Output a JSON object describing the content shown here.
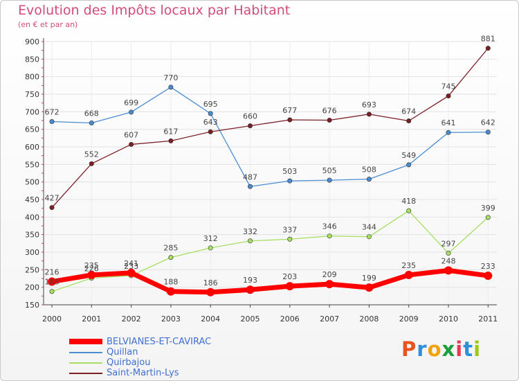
{
  "title": "Evolution des Impôts locaux par Habitant",
  "subtitle": "(en € et par an)",
  "brand": {
    "letters": [
      "P",
      "r",
      "o",
      "x",
      "i",
      "t",
      "i"
    ],
    "colors": [
      "#e8531f",
      "#2f8fd8",
      "#f2a20d",
      "#1a9f3c",
      "#e83a52",
      "#2f8fd8",
      "#a0c815"
    ]
  },
  "chart_data": {
    "type": "line",
    "title": "Evolution des Impôts locaux par Habitant",
    "subtitle": "(en € et par an)",
    "xlabel": "",
    "ylabel": "",
    "categories": [
      "2000",
      "2001",
      "2002",
      "2003",
      "2004",
      "2005",
      "2006",
      "2007",
      "2008",
      "2009",
      "2010",
      "2011"
    ],
    "ylim": [
      150,
      900
    ],
    "yticks": [
      150,
      200,
      250,
      300,
      350,
      400,
      450,
      500,
      550,
      600,
      650,
      700,
      750,
      800,
      850,
      900
    ],
    "grid": true,
    "legend_position": "bottom-left",
    "series": [
      {
        "name": "BELVIANES-ET-CAVIRAC",
        "color": "#ff0000",
        "thick": true,
        "values": [
          216,
          235,
          241,
          188,
          186,
          193,
          203,
          209,
          199,
          235,
          248,
          233
        ],
        "labels": [
          "216",
          "235",
          "241",
          "188",
          "186",
          "193",
          "203",
          "209",
          "199",
          "235",
          "248",
          "233"
        ]
      },
      {
        "name": "Quillan",
        "color": "#4a8cd0",
        "thick": false,
        "values": [
          672,
          668,
          699,
          770,
          695,
          487,
          503,
          505,
          508,
          549,
          641,
          642
        ],
        "labels": [
          "672",
          "668",
          "699",
          "770",
          "695",
          "487",
          "503",
          "505",
          "508",
          "549",
          "641",
          "642"
        ]
      },
      {
        "name": "Quirbajou",
        "color": "#a6df62",
        "thick": false,
        "values": [
          188,
          226,
          233,
          285,
          312,
          332,
          337,
          346,
          344,
          418,
          297,
          399
        ],
        "labels": [
          "188",
          "226",
          "233",
          "285",
          "312",
          "332",
          "337",
          "346",
          "344",
          "418",
          "297",
          "399"
        ]
      },
      {
        "name": "Saint-Martin-Lys",
        "color": "#7a1f24",
        "thick": false,
        "values": [
          427,
          552,
          607,
          617,
          643,
          660,
          677,
          676,
          693,
          674,
          745,
          881
        ],
        "labels": [
          "427",
          "552",
          "607",
          "617",
          "643",
          "660",
          "677",
          "676",
          "693",
          "674",
          "745",
          "881"
        ]
      }
    ]
  }
}
